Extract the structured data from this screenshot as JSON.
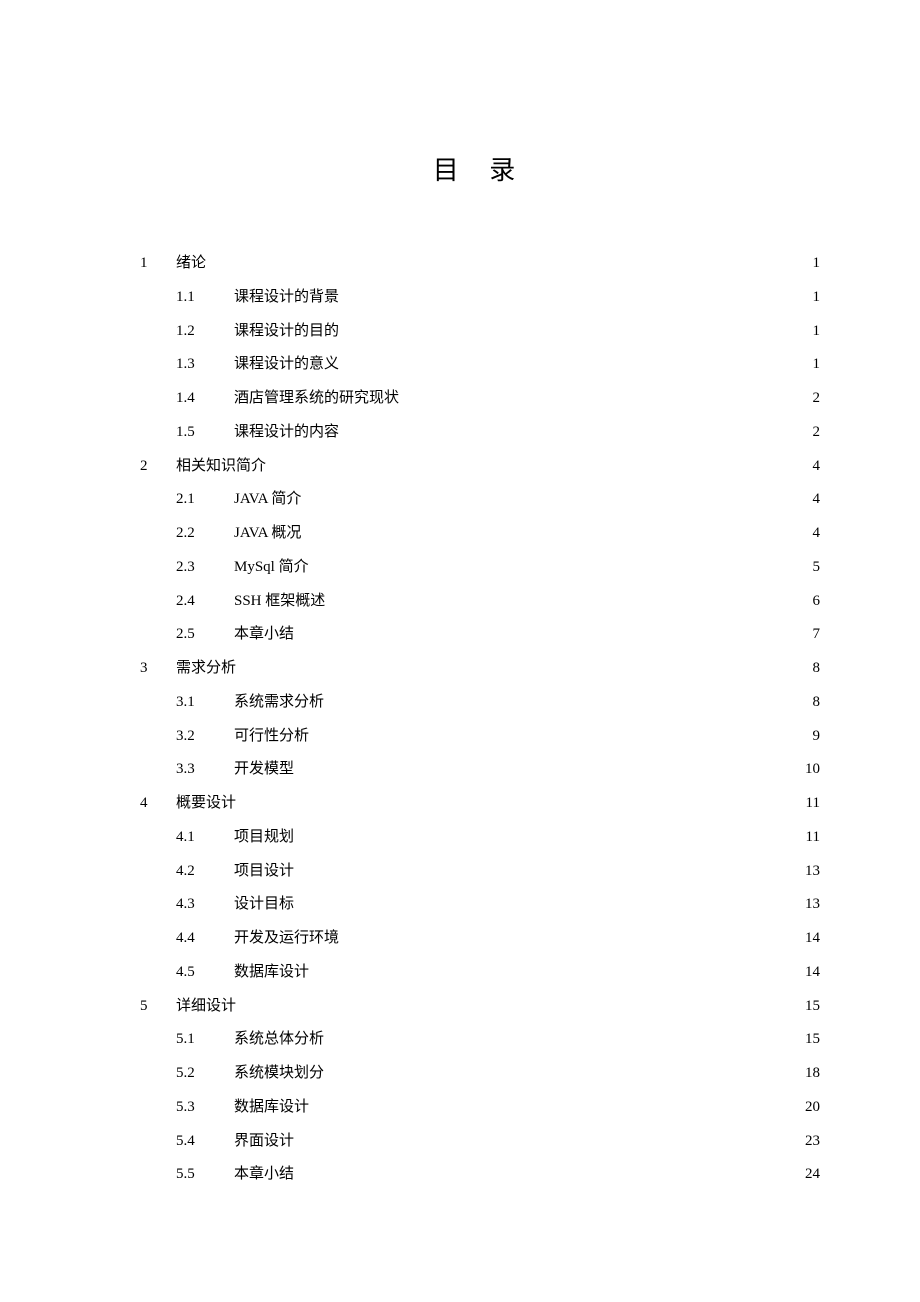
{
  "title": "目 录",
  "toc": {
    "colors": {
      "text": "#000000",
      "background": "#ffffff"
    },
    "font_sizes": {
      "title": 26,
      "body": 15
    },
    "sections": [
      {
        "num": "1",
        "title": "绪论",
        "page": "1",
        "subs": [
          {
            "num": "1.1",
            "title": "课程设计的背景",
            "page": "1"
          },
          {
            "num": "1.2",
            "title": "课程设计的目的",
            "page": "1"
          },
          {
            "num": "1.3",
            "title": "课程设计的意义",
            "page": "1"
          },
          {
            "num": "1.4",
            "title": "酒店管理系统的研究现状",
            "page": "2"
          },
          {
            "num": "1.5",
            "title": "课程设计的内容",
            "page": "2"
          }
        ]
      },
      {
        "num": "2",
        "title": "相关知识简介",
        "page": "4",
        "subs": [
          {
            "num": "2.1",
            "title": "JAVA 简介",
            "page": "4",
            "western_prefix": "JAVA"
          },
          {
            "num": "2.2",
            "title": "JAVA 概况",
            "page": "4",
            "western_prefix": "JAVA"
          },
          {
            "num": "2.3",
            "title": "MySql 简介",
            "page": "5",
            "western_prefix": "MySql"
          },
          {
            "num": "2.4",
            "title": "SSH 框架概述",
            "page": "6",
            "western_prefix": "SSH"
          },
          {
            "num": "2.5",
            "title": "本章小结",
            "page": "7"
          }
        ]
      },
      {
        "num": "3",
        "title": "需求分析",
        "page": "8",
        "subs": [
          {
            "num": "3.1",
            "title": "系统需求分析",
            "page": "8"
          },
          {
            "num": "3.2",
            "title": "可行性分析",
            "page": "9"
          },
          {
            "num": "3.3",
            "title": "开发模型",
            "page": "10"
          }
        ]
      },
      {
        "num": "4",
        "title": "概要设计",
        "page": "11",
        "subs": [
          {
            "num": "4.1",
            "title": "项目规划",
            "page": "11"
          },
          {
            "num": "4.2",
            "title": "项目设计",
            "page": "13"
          },
          {
            "num": "4.3",
            "title": "设计目标",
            "page": "13"
          },
          {
            "num": "4.4",
            "title": "开发及运行环境",
            "page": "14"
          },
          {
            "num": "4.5",
            "title": "数据库设计",
            "page": "14"
          }
        ]
      },
      {
        "num": "5",
        "title": "详细设计",
        "page": "15",
        "subs": [
          {
            "num": "5.1",
            "title": "系统总体分析",
            "page": "15"
          },
          {
            "num": "5.2",
            "title": "系统模块划分",
            "page": "18"
          },
          {
            "num": "5.3",
            "title": "数据库设计",
            "page": "20"
          },
          {
            "num": "5.4",
            "title": "界面设计",
            "page": "23"
          },
          {
            "num": "5.5",
            "title": "本章小结",
            "page": "24"
          }
        ]
      }
    ]
  }
}
